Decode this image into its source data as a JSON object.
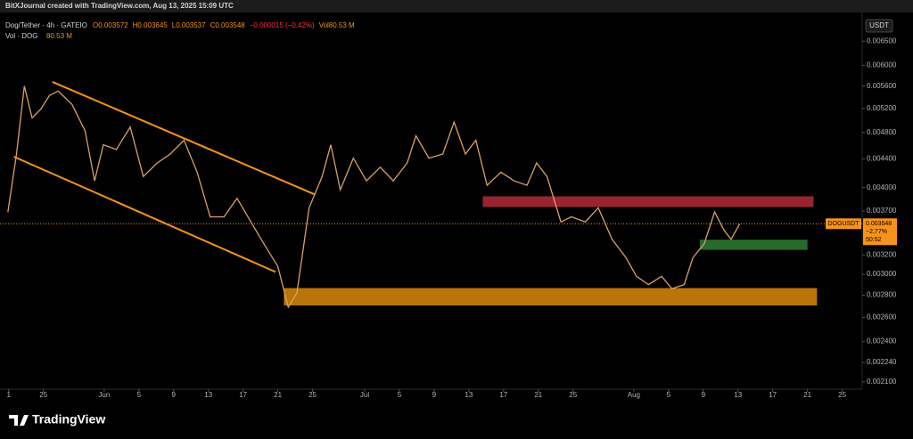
{
  "header": {
    "title": "BitXJournal created with TradingView.com, Aug 13, 2025 15:09 UTC"
  },
  "footer": {
    "brand": "TradingView"
  },
  "chart_data": {
    "type": "line",
    "title": "Dog/Tether · 4h · GATEIO",
    "legend_items": [
      "O0.003572",
      "H0.003645",
      "L0.003537",
      "C0.003548",
      "−0.000015 (−0.42%)",
      "Vol80.53 M"
    ],
    "volume_label": "Vol · DOG",
    "volume_value": "80.53 M",
    "currency": "USDT",
    "color": "#d9a066",
    "log_scale": true,
    "x": [
      -11.1,
      -10.1,
      -9.2,
      -8.3,
      -7.3,
      -6.3,
      -5.3,
      -3.7,
      -2.2,
      -1.1,
      -0.1,
      1.4,
      3.0,
      4.5,
      6.1,
      7.6,
      9.2,
      10.7,
      12.2,
      13.8,
      15.3,
      16.9,
      18.4,
      20.0,
      21.2,
      22.2,
      23.6,
      25.1,
      26.1,
      27.2,
      28.7,
      30.2,
      31.8,
      33.3,
      34.9,
      35.9,
      37.4,
      39.0,
      40.3,
      41.6,
      42.8,
      44.1,
      45.7,
      47.2,
      48.7,
      49.8,
      51.0,
      52.6,
      53.8,
      55.4,
      56.9,
      58.5,
      60.1,
      61.3,
      62.7,
      64.2,
      65.4,
      66.8,
      67.8,
      69.1,
      70.3,
      71.4,
      72.2,
      73.2
    ],
    "values": [
      0.003685,
      0.00447,
      0.0056,
      0.00504,
      0.00519,
      0.00543,
      0.00551,
      0.00527,
      0.00483,
      0.00409,
      0.00461,
      0.00454,
      0.00489,
      0.00415,
      0.00434,
      0.00447,
      0.00468,
      0.00421,
      0.00363,
      0.00363,
      0.00386,
      0.00357,
      0.00332,
      0.00308,
      0.00269,
      0.00282,
      0.00374,
      0.00415,
      0.00461,
      0.00397,
      0.00441,
      0.00409,
      0.00428,
      0.00409,
      0.00434,
      0.00475,
      0.00441,
      0.00447,
      0.00497,
      0.00447,
      0.00468,
      0.00403,
      0.00421,
      0.00409,
      0.00403,
      0.00434,
      0.00415,
      0.00357,
      0.00363,
      0.00357,
      0.00374,
      0.00337,
      0.00317,
      0.00298,
      0.0029,
      0.00298,
      0.00286,
      0.0029,
      0.00317,
      0.00332,
      0.00369,
      0.00347,
      0.00337,
      0.003548
    ],
    "xlim": [
      -12,
      87.3
    ],
    "xticks": [
      {
        "value": -11,
        "label": "1"
      },
      {
        "value": -7,
        "label": "25"
      },
      {
        "value": 0,
        "label": "Jun"
      },
      {
        "value": 4,
        "label": "5"
      },
      {
        "value": 8,
        "label": "9"
      },
      {
        "value": 12,
        "label": "13"
      },
      {
        "value": 16,
        "label": "17"
      },
      {
        "value": 20,
        "label": "21"
      },
      {
        "value": 24,
        "label": "25"
      },
      {
        "value": 30,
        "label": "Jul"
      },
      {
        "value": 34,
        "label": "5"
      },
      {
        "value": 38,
        "label": "9"
      },
      {
        "value": 42,
        "label": "13"
      },
      {
        "value": 46,
        "label": "17"
      },
      {
        "value": 50,
        "label": "21"
      },
      {
        "value": 54,
        "label": "25"
      },
      {
        "value": 61,
        "label": "Aug"
      },
      {
        "value": 65,
        "label": "5"
      },
      {
        "value": 69,
        "label": "9"
      },
      {
        "value": 73,
        "label": "13"
      },
      {
        "value": 77,
        "label": "17"
      },
      {
        "value": 81,
        "label": "21"
      },
      {
        "value": 85,
        "label": "25"
      }
    ],
    "ylim": [
      0.00205,
      0.00715
    ],
    "yticks": [
      {
        "value": 0.0065,
        "label": "0.006500"
      },
      {
        "value": 0.006,
        "label": "0.006000"
      },
      {
        "value": 0.0056,
        "label": "0.005600"
      },
      {
        "value": 0.0052,
        "label": "0.005200"
      },
      {
        "value": 0.0048,
        "label": "0.004800"
      },
      {
        "value": 0.0044,
        "label": "0.004400"
      },
      {
        "value": 0.004,
        "label": "0.004000"
      },
      {
        "value": 0.0037,
        "label": "0.003700"
      },
      {
        "value": 0.0032,
        "label": "0.003200"
      },
      {
        "value": 0.003,
        "label": "0.003000"
      },
      {
        "value": 0.0028,
        "label": "0.002800"
      },
      {
        "value": 0.0026,
        "label": "0.002600"
      },
      {
        "value": 0.0024,
        "label": "0.002400"
      },
      {
        "value": 0.00224,
        "label": "0.002240"
      },
      {
        "value": 0.0021,
        "label": "0.002100"
      }
    ],
    "price_line": {
      "symbol": "DOGUSDT",
      "value": 0.003548,
      "change": "−2.77%",
      "countdown": "50:52",
      "color": "#f7931a"
    },
    "zones": [
      {
        "x": [
          43.6,
          81.7
        ],
        "y": [
          0.003886,
          0.00375
        ],
        "color": "#b02a3a"
      },
      {
        "x": [
          68.6,
          81.0
        ],
        "y": [
          0.003365,
          0.003254
        ],
        "color": "#2e7d32"
      },
      {
        "x": [
          20.7,
          82.1
        ],
        "y": [
          0.002866,
          0.002706
        ],
        "color": "#d98a0b"
      }
    ],
    "channel": {
      "color": "#f7931a",
      "lines": [
        {
          "x": [
            -5.97,
            24.3
          ],
          "y": [
            0.00568,
            0.003908
          ]
        },
        {
          "x": [
            -10.4,
            19.75
          ],
          "y": [
            0.004431,
            0.003023
          ]
        }
      ]
    }
  }
}
